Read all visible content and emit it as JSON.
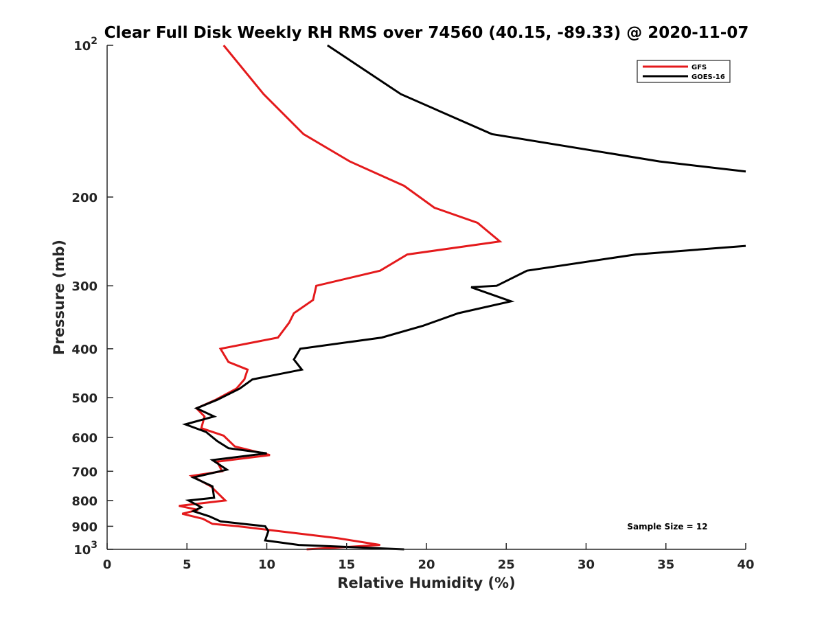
{
  "chart_data": {
    "type": "line",
    "title": "Clear Full Disk Weekly RH RMS over 74560 (40.15, -89.33) @ 2020-11-07",
    "xlabel": "Relative Humidity (%)",
    "ylabel": "Pressure (mb)",
    "xlim": [
      0,
      40
    ],
    "ylim": [
      100,
      1000
    ],
    "y_scale": "log",
    "y_reversed": true,
    "grid": false,
    "legend_position": "top-right",
    "x_ticks": [
      "0",
      "5",
      "10",
      "15",
      "20",
      "25",
      "30",
      "35",
      "40"
    ],
    "y_ticks": [
      {
        "value": 100,
        "base": "10",
        "exp": "2"
      },
      {
        "value": 200,
        "label": "200"
      },
      {
        "value": 300,
        "label": "300"
      },
      {
        "value": 400,
        "label": "400"
      },
      {
        "value": 500,
        "label": "500"
      },
      {
        "value": 600,
        "label": "600"
      },
      {
        "value": 700,
        "label": "700"
      },
      {
        "value": 800,
        "label": "800"
      },
      {
        "value": 900,
        "label": "900"
      },
      {
        "value": 1000,
        "base": "10",
        "exp": "3"
      }
    ],
    "annotation": "Sample Size = 12",
    "series": [
      {
        "name": "GFS",
        "color": "#e41a1c",
        "points": [
          [
            7.3,
            100
          ],
          [
            9.8,
            125
          ],
          [
            12.3,
            150
          ],
          [
            15.2,
            170
          ],
          [
            18.6,
            190
          ],
          [
            20.5,
            210
          ],
          [
            23.2,
            225
          ],
          [
            24.6,
            245
          ],
          [
            18.8,
            260
          ],
          [
            17.1,
            280
          ],
          [
            13.1,
            300
          ],
          [
            12.9,
            320
          ],
          [
            11.7,
            340
          ],
          [
            11.4,
            355
          ],
          [
            10.7,
            380
          ],
          [
            7.1,
            400
          ],
          [
            7.6,
            425
          ],
          [
            8.8,
            440
          ],
          [
            8.6,
            460
          ],
          [
            8.1,
            480
          ],
          [
            6.8,
            505
          ],
          [
            5.6,
            525
          ],
          [
            6.1,
            545
          ],
          [
            5.9,
            575
          ],
          [
            7.3,
            595
          ],
          [
            8.0,
            625
          ],
          [
            10.2,
            650
          ],
          [
            6.9,
            670
          ],
          [
            7.2,
            700
          ],
          [
            5.3,
            715
          ],
          [
            6.5,
            750
          ],
          [
            7.4,
            800
          ],
          [
            4.5,
            820
          ],
          [
            5.7,
            835
          ],
          [
            4.7,
            850
          ],
          [
            6.0,
            870
          ],
          [
            6.6,
            890
          ],
          [
            8.2,
            900
          ],
          [
            10.7,
            920
          ],
          [
            14.4,
            950
          ],
          [
            17.1,
            980
          ],
          [
            12.5,
            1000
          ]
        ]
      },
      {
        "name": "GOES-16",
        "color": "#000000",
        "points": [
          [
            13.8,
            100
          ],
          [
            18.4,
            125
          ],
          [
            24.1,
            150
          ],
          [
            34.6,
            170
          ],
          [
            40.0,
            178
          ],
          null,
          [
            40.0,
            250
          ],
          [
            33.1,
            260
          ],
          [
            26.3,
            280
          ],
          [
            24.4,
            300
          ],
          [
            22.8,
            302
          ],
          [
            25.3,
            322
          ],
          [
            22.0,
            340
          ],
          [
            19.8,
            360
          ],
          [
            17.2,
            380
          ],
          [
            12.1,
            400
          ],
          [
            11.7,
            420
          ],
          [
            12.2,
            440
          ],
          [
            9.1,
            460
          ],
          [
            8.3,
            480
          ],
          [
            6.9,
            505
          ],
          [
            5.6,
            525
          ],
          [
            6.7,
            545
          ],
          [
            4.9,
            565
          ],
          [
            6.2,
            585
          ],
          [
            6.9,
            610
          ],
          [
            7.6,
            630
          ],
          [
            10.0,
            645
          ],
          [
            6.6,
            665
          ],
          [
            7.5,
            695
          ],
          [
            5.4,
            720
          ],
          [
            6.6,
            750
          ],
          [
            6.7,
            790
          ],
          [
            5.1,
            800
          ],
          [
            5.9,
            825
          ],
          [
            5.4,
            840
          ],
          [
            6.4,
            860
          ],
          [
            7.1,
            880
          ],
          [
            9.9,
            900
          ],
          [
            10.1,
            920
          ],
          [
            9.9,
            960
          ],
          [
            12.0,
            980
          ],
          [
            18.6,
            1000
          ]
        ]
      }
    ]
  }
}
